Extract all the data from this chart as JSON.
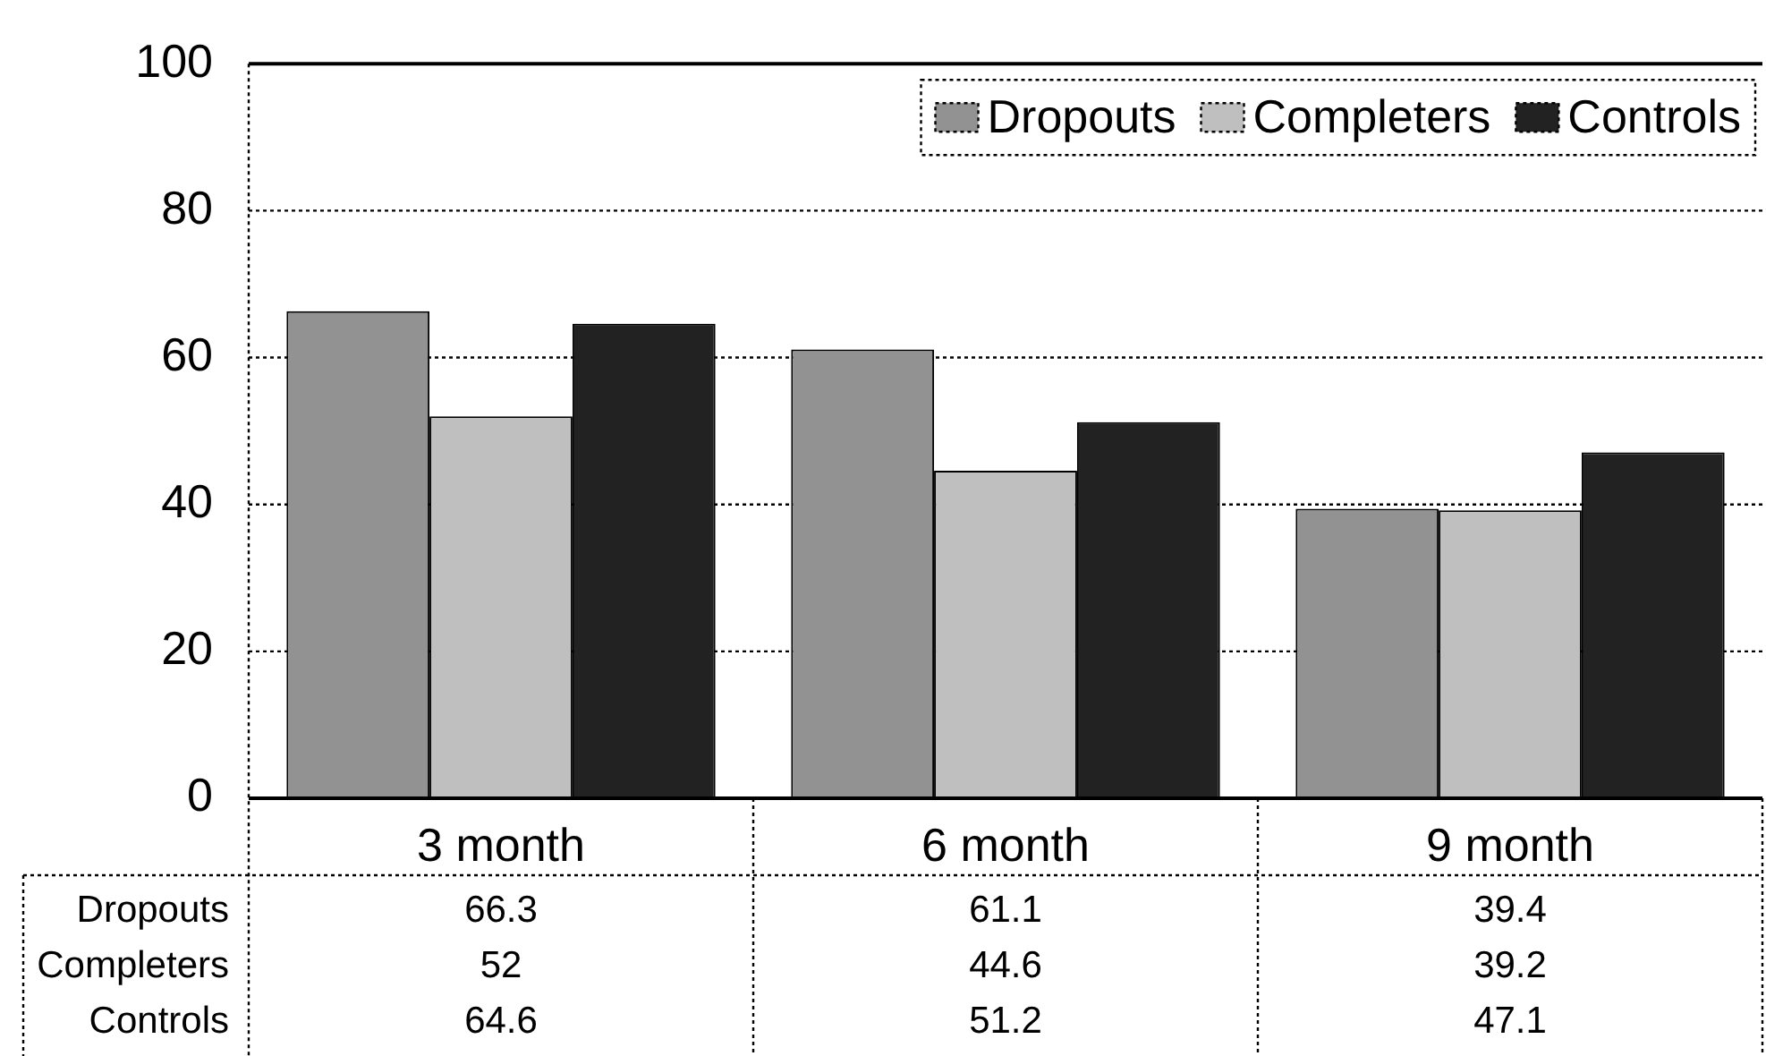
{
  "chart_data": {
    "type": "bar",
    "categories": [
      "3 month",
      "6 month",
      "9 month"
    ],
    "series": [
      {
        "name": "Dropouts",
        "color": "#929292",
        "values": [
          66.3,
          61.1,
          39.4
        ]
      },
      {
        "name": "Completers",
        "color": "#bfbfbf",
        "values": [
          52,
          44.6,
          39.2
        ]
      },
      {
        "name": "Controls",
        "color": "#222222",
        "values": [
          64.6,
          51.2,
          47.1
        ]
      }
    ],
    "ylim": [
      0,
      100
    ],
    "yticks": [
      0,
      20,
      40,
      60,
      80,
      100
    ],
    "grid": "y",
    "legend": "top right",
    "data_labels": true
  }
}
